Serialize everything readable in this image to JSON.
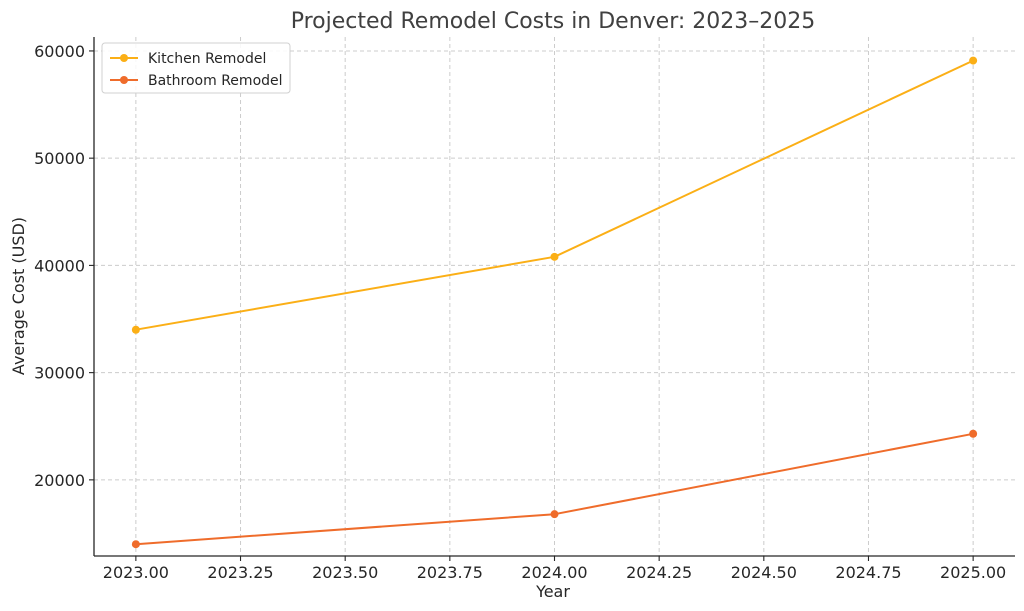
{
  "chart_data": {
    "type": "line",
    "title": "Projected Remodel Costs in Denver: 2023–2025",
    "xlabel": "Year",
    "ylabel": "Average Cost (USD)",
    "x": [
      2023,
      2024,
      2025
    ],
    "xlim": [
      2022.9,
      2025.1
    ],
    "ylim": [
      12900,
      61300
    ],
    "xticks": [
      2023.0,
      2023.25,
      2023.5,
      2023.75,
      2024.0,
      2024.25,
      2024.5,
      2024.75,
      2025.0
    ],
    "xtick_labels": [
      "2023.00",
      "2023.25",
      "2023.50",
      "2023.75",
      "2024.00",
      "2024.25",
      "2024.50",
      "2024.75",
      "2025.00"
    ],
    "yticks": [
      20000,
      30000,
      40000,
      50000,
      60000
    ],
    "ytick_labels": [
      "20000",
      "30000",
      "40000",
      "50000",
      "60000"
    ],
    "grid": true,
    "legend_position": "top-left",
    "series": [
      {
        "name": "Kitchen Remodel",
        "values": [
          34000,
          40800,
          59100
        ],
        "color": "#fbaf16"
      },
      {
        "name": "Bathroom Remodel",
        "values": [
          14000,
          16800,
          24300
        ],
        "color": "#ef6c2b"
      }
    ]
  }
}
